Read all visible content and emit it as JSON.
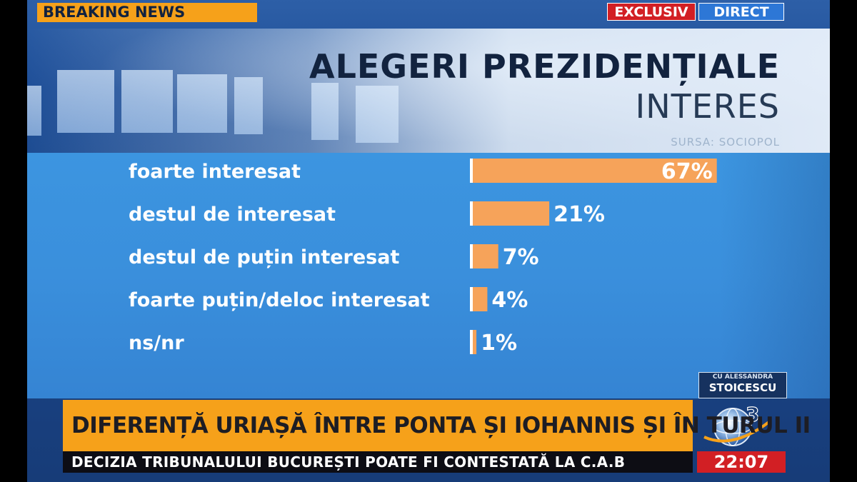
{
  "header": {
    "breaking_label": "BREAKING NEWS",
    "exclusiv_label": "EXCLUSIV",
    "direct_label": "DIRECT"
  },
  "chart_data": {
    "type": "bar",
    "orientation": "horizontal",
    "title": "ALEGERI PREZIDENȚIALE",
    "subtitle": "INTERES",
    "source": "SURSA: SOCIOPOL",
    "categories": [
      "foarte interesat",
      "destul de interesat",
      "destul de puțin interesat",
      "foarte puțin/deloc interesat",
      "ns/nr"
    ],
    "values": [
      67,
      21,
      7,
      4,
      1
    ],
    "value_labels": [
      "67%",
      "21%",
      "7%",
      "4%",
      "1%"
    ],
    "unit": "%",
    "bar_color": "#f6a35a",
    "label_color": "#ffffff",
    "xlim": [
      0,
      100
    ],
    "grid": false,
    "legend": "none"
  },
  "lower_third": {
    "headline": "DIFERENȚĂ URIAȘĂ ÎNTRE PONTA ȘI IOHANNIS ȘI ÎN TURUL II",
    "ticker": "DECIZIA TRIBUNALULUI BUCUREȘTI POATE FI CONTESTATĂ LA C.A.B",
    "clock": "22:07"
  },
  "branding": {
    "show_prefix": "CU ALESSANDRA",
    "show_host": "STOICESCU",
    "channel_logo": "antena-3-globe-logo",
    "channel_number": "3"
  },
  "colors": {
    "accent_orange": "#f6a11a",
    "alert_red": "#d21f24",
    "direct_blue": "#2d77d6",
    "panel_blue": "#3a8fdc",
    "title_navy": "#12233f"
  }
}
